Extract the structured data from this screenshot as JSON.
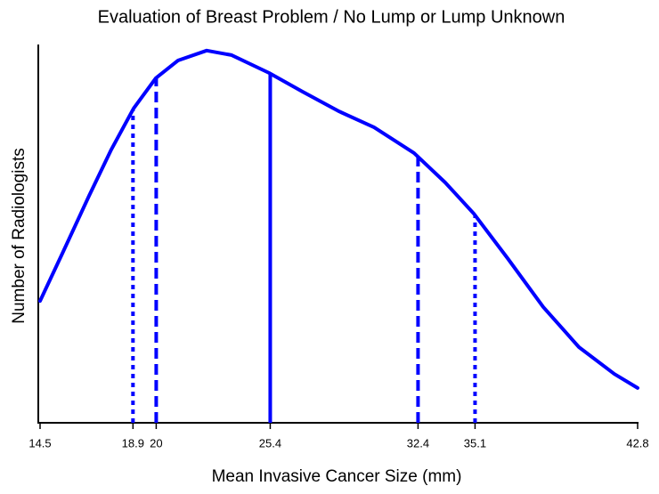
{
  "chart_data": {
    "type": "line",
    "title": "Evaluation of Breast Problem / No Lump or Lump Unknown",
    "x_label": "Mean Invasive Cancer Size (mm)",
    "y_label": "Number of Radiologists",
    "xlim": [
      14.5,
      42.8
    ],
    "xticks": [
      14.5,
      18.9,
      20.0,
      25.4,
      32.4,
      35.1,
      42.8
    ],
    "ylim": [
      0,
      1
    ],
    "series": [
      {
        "color": "#0000ff",
        "x": [
          14.5,
          15.55,
          16.82,
          17.87,
          18.93,
          19.98,
          21.04,
          22.39,
          23.57,
          25.34,
          26.94,
          28.63,
          30.32,
          32.21,
          33.69,
          35.04,
          36.64,
          38.33,
          40.02,
          41.7,
          42.8
        ],
        "values": [
          0.322,
          0.447,
          0.6,
          0.722,
          0.831,
          0.911,
          0.958,
          0.984,
          0.972,
          0.925,
          0.875,
          0.824,
          0.781,
          0.713,
          0.635,
          0.553,
          0.435,
          0.306,
          0.2,
          0.129,
          0.092
        ]
      }
    ],
    "reference_lines": [
      {
        "x": 18.9,
        "style": "dotted"
      },
      {
        "x": 20.0,
        "style": "dashed"
      },
      {
        "x": 25.4,
        "style": "solid"
      },
      {
        "x": 32.4,
        "style": "dashed"
      },
      {
        "x": 35.1,
        "style": "dotted"
      }
    ]
  }
}
